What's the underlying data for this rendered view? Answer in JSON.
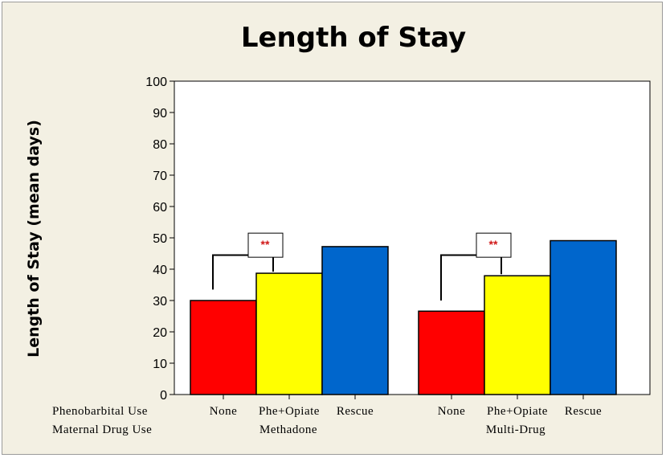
{
  "chart_data": {
    "type": "bar",
    "title": "Length of Stay",
    "ylabel": "Length of Stay (mean days)",
    "xlabel": "",
    "ylim": [
      0,
      100
    ],
    "yticks": [
      0,
      10,
      20,
      30,
      40,
      50,
      60,
      70,
      80,
      90,
      100
    ],
    "grid": false,
    "row_labels": [
      "Phenobarbital Use",
      "Maternal Drug Use"
    ],
    "groups": [
      {
        "name": "Methadone",
        "bars": [
          {
            "category": "None",
            "value": 30,
            "color": "#ff0000"
          },
          {
            "category": "Phe+Opiate",
            "value": 38.7,
            "color": "#ffff00"
          },
          {
            "category": "Rescue",
            "value": 47.2,
            "color": "#0066cc"
          }
        ],
        "significance": {
          "from": "None",
          "to": "Phe+Opiate",
          "label": "**"
        }
      },
      {
        "name": "Multi-Drug",
        "bars": [
          {
            "category": "None",
            "value": 26.6,
            "color": "#ff0000"
          },
          {
            "category": "Phe+Opiate",
            "value": 37.9,
            "color": "#ffff00"
          },
          {
            "category": "Rescue",
            "value": 49.1,
            "color": "#0066cc"
          }
        ],
        "significance": {
          "from": "None",
          "to": "Phe+Opiate",
          "label": "**"
        }
      }
    ]
  }
}
